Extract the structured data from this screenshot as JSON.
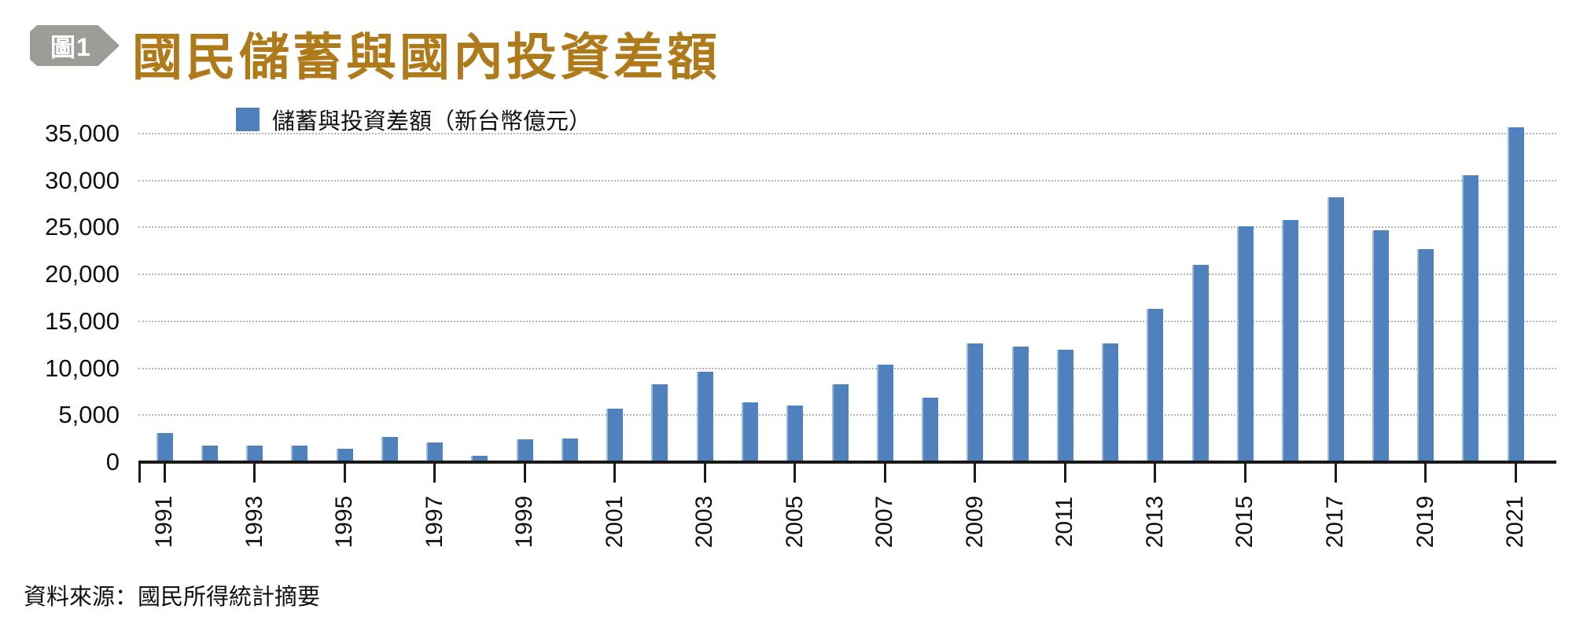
{
  "figure_badge": "圖1",
  "title": "國民儲蓄與國內投資差額",
  "legend": {
    "label": "儲蓄與投資差額（新台幣億元）",
    "swatch_color": "#4F81BD"
  },
  "source_note": "資料來源：國民所得統計摘要",
  "chart_data": {
    "type": "bar",
    "title": "國民儲蓄與國內投資差額",
    "series_name": "儲蓄與投資差額（新台幣億元）",
    "unit": "新台幣億元",
    "bar_color": "#4F81BD",
    "grid": "horizontal dotted",
    "legend_position": "top-left",
    "ylim": [
      0,
      35000
    ],
    "ytick_interval": 5000,
    "ytick_labels": [
      "0",
      "5,000",
      "10,000",
      "15,000",
      "20,000",
      "25,000",
      "30,000",
      "35,000"
    ],
    "xtick_labeled_years": [
      1991,
      1993,
      1995,
      1997,
      1999,
      2001,
      2003,
      2005,
      2007,
      2009,
      2011,
      2013,
      2015,
      2017,
      2019,
      2021
    ],
    "x": [
      1991,
      1992,
      1993,
      1994,
      1995,
      1996,
      1997,
      1998,
      1999,
      2000,
      2001,
      2002,
      2003,
      2004,
      2005,
      2006,
      2007,
      2008,
      2009,
      2010,
      2011,
      2012,
      2013,
      2014,
      2015,
      2016,
      2017,
      2018,
      2019,
      2020,
      2021
    ],
    "values": [
      3100,
      1750,
      1750,
      1750,
      1400,
      2700,
      2100,
      700,
      2450,
      2500,
      5700,
      8250,
      9650,
      6400,
      6050,
      8250,
      10400,
      6850,
      12650,
      12300,
      11950,
      12650,
      16300,
      21000,
      25100,
      25800,
      28200,
      24700,
      22650,
      30550,
      35700
    ]
  }
}
